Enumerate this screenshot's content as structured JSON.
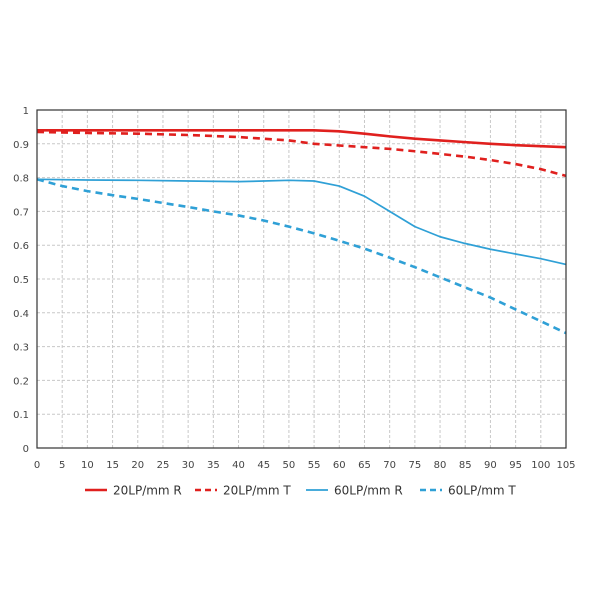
{
  "chart_data": {
    "type": "line",
    "xlim": [
      0,
      105
    ],
    "ylim": [
      0,
      1
    ],
    "x_ticks": [
      0,
      5,
      10,
      15,
      20,
      25,
      30,
      35,
      40,
      45,
      50,
      55,
      60,
      65,
      70,
      75,
      80,
      85,
      90,
      95,
      100,
      105
    ],
    "y_ticks": [
      "0",
      "0.1",
      "0.2",
      "0.3",
      "0.4",
      "0.5",
      "0.6",
      "0.7",
      "0.8",
      "0.9",
      "1"
    ],
    "grid": true,
    "legend_position": "bottom",
    "series": [
      {
        "name": "20LP/mm R",
        "color": "#e0201e",
        "style": "solid",
        "width": "thick",
        "points": [
          [
            0,
            0.94
          ],
          [
            10,
            0.94
          ],
          [
            20,
            0.94
          ],
          [
            30,
            0.94
          ],
          [
            40,
            0.94
          ],
          [
            50,
            0.94
          ],
          [
            55,
            0.94
          ],
          [
            60,
            0.937
          ],
          [
            65,
            0.93
          ],
          [
            70,
            0.922
          ],
          [
            75,
            0.915
          ],
          [
            80,
            0.91
          ],
          [
            85,
            0.905
          ],
          [
            90,
            0.9
          ],
          [
            95,
            0.896
          ],
          [
            100,
            0.893
          ],
          [
            105,
            0.89
          ]
        ]
      },
      {
        "name": "20LP/mm T",
        "color": "#e0201e",
        "style": "dashed",
        "width": "thick",
        "points": [
          [
            0,
            0.935
          ],
          [
            10,
            0.932
          ],
          [
            20,
            0.93
          ],
          [
            30,
            0.926
          ],
          [
            40,
            0.92
          ],
          [
            50,
            0.91
          ],
          [
            55,
            0.9
          ],
          [
            60,
            0.895
          ],
          [
            65,
            0.89
          ],
          [
            70,
            0.885
          ],
          [
            75,
            0.878
          ],
          [
            80,
            0.87
          ],
          [
            85,
            0.862
          ],
          [
            90,
            0.852
          ],
          [
            95,
            0.84
          ],
          [
            100,
            0.825
          ],
          [
            105,
            0.805
          ]
        ]
      },
      {
        "name": "60LP/mm R",
        "color": "#2fa0d6",
        "style": "solid",
        "width": "thin",
        "points": [
          [
            0,
            0.795
          ],
          [
            10,
            0.793
          ],
          [
            20,
            0.792
          ],
          [
            30,
            0.79
          ],
          [
            40,
            0.788
          ],
          [
            45,
            0.79
          ],
          [
            50,
            0.792
          ],
          [
            55,
            0.79
          ],
          [
            60,
            0.775
          ],
          [
            65,
            0.745
          ],
          [
            70,
            0.7
          ],
          [
            75,
            0.655
          ],
          [
            80,
            0.625
          ],
          [
            85,
            0.605
          ],
          [
            90,
            0.588
          ],
          [
            95,
            0.574
          ],
          [
            100,
            0.56
          ],
          [
            105,
            0.543
          ]
        ]
      },
      {
        "name": "60LP/mm T",
        "color": "#2fa0d6",
        "style": "dashed",
        "width": "thick",
        "points": [
          [
            0,
            0.795
          ],
          [
            5,
            0.775
          ],
          [
            10,
            0.76
          ],
          [
            15,
            0.748
          ],
          [
            20,
            0.737
          ],
          [
            25,
            0.725
          ],
          [
            30,
            0.713
          ],
          [
            35,
            0.7
          ],
          [
            40,
            0.688
          ],
          [
            45,
            0.673
          ],
          [
            50,
            0.655
          ],
          [
            55,
            0.635
          ],
          [
            60,
            0.613
          ],
          [
            65,
            0.59
          ],
          [
            70,
            0.563
          ],
          [
            75,
            0.535
          ],
          [
            80,
            0.505
          ],
          [
            85,
            0.475
          ],
          [
            90,
            0.445
          ],
          [
            95,
            0.41
          ],
          [
            100,
            0.375
          ],
          [
            105,
            0.34
          ]
        ]
      }
    ]
  }
}
